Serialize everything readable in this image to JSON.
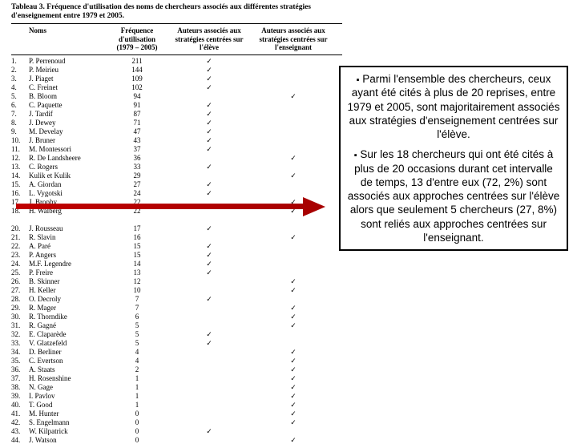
{
  "table": {
    "title": "Tableau 3. Fréquence d'utilisation des noms de chercheurs associés aux différentes stratégies d'enseignement entre 1979 et 2005.",
    "headers": {
      "noms": "Noms",
      "freq": "Fréquence d'utilisation\n(1979 – 2005)",
      "stud": "Auteurs associés aux\nstratégies centrées sur l'élève",
      "teach": "Auteurs associés aux\nstratégies centrées sur\nl'enseignant"
    },
    "rows": [
      {
        "n": "1.",
        "name": "P. Perrenoud",
        "f": "211",
        "s": "✓",
        "t": ""
      },
      {
        "n": "2.",
        "name": "P. Meirieu",
        "f": "144",
        "s": "✓",
        "t": ""
      },
      {
        "n": "3.",
        "name": "J. Piaget",
        "f": "109",
        "s": "✓",
        "t": ""
      },
      {
        "n": "4.",
        "name": "C. Freinet",
        "f": "102",
        "s": "✓",
        "t": ""
      },
      {
        "n": "5.",
        "name": "B. Bloom",
        "f": "94",
        "s": "",
        "t": "✓"
      },
      {
        "n": "6.",
        "name": "C. Paquette",
        "f": "91",
        "s": "✓",
        "t": ""
      },
      {
        "n": "7.",
        "name": "J. Tardif",
        "f": "87",
        "s": "✓",
        "t": ""
      },
      {
        "n": "8.",
        "name": "J. Dewey",
        "f": "71",
        "s": "✓",
        "t": ""
      },
      {
        "n": "9.",
        "name": "M. Develay",
        "f": "47",
        "s": "✓",
        "t": ""
      },
      {
        "n": "10.",
        "name": "J. Bruner",
        "f": "43",
        "s": "✓",
        "t": ""
      },
      {
        "n": "11.",
        "name": "M. Montessori",
        "f": "37",
        "s": "✓",
        "t": ""
      },
      {
        "n": "12.",
        "name": "R. De Landsheere",
        "f": "36",
        "s": "",
        "t": "✓"
      },
      {
        "n": "13.",
        "name": "C. Rogers",
        "f": "33",
        "s": "✓",
        "t": ""
      },
      {
        "n": "14.",
        "name": "Kulik et Kulik",
        "f": "29",
        "s": "",
        "t": "✓"
      },
      {
        "n": "15.",
        "name": "A. Giordan",
        "f": "27",
        "s": "✓",
        "t": ""
      },
      {
        "n": "16.",
        "name": "L. Vygotski",
        "f": "24",
        "s": "✓",
        "t": ""
      },
      {
        "n": "17.",
        "name": "J. Brophy",
        "f": "22",
        "s": "",
        "t": "✓"
      },
      {
        "n": "18.",
        "name": "H. Walberg",
        "f": "22",
        "s": "",
        "t": "✓"
      },
      {
        "n": "",
        "name": "",
        "f": "",
        "s": "",
        "t": ""
      },
      {
        "n": "20.",
        "name": "J. Rousseau",
        "f": "17",
        "s": "✓",
        "t": ""
      },
      {
        "n": "21.",
        "name": "R. Slavin",
        "f": "16",
        "s": "",
        "t": "✓"
      },
      {
        "n": "22.",
        "name": "A. Paré",
        "f": "15",
        "s": "✓",
        "t": ""
      },
      {
        "n": "23.",
        "name": "P. Angers",
        "f": "15",
        "s": "✓",
        "t": ""
      },
      {
        "n": "24.",
        "name": "M.F. Legendre",
        "f": "14",
        "s": "✓",
        "t": ""
      },
      {
        "n": "25.",
        "name": "P. Freire",
        "f": "13",
        "s": "✓",
        "t": ""
      },
      {
        "n": "26.",
        "name": "B. Skinner",
        "f": "12",
        "s": "",
        "t": "✓"
      },
      {
        "n": "27.",
        "name": "H. Keller",
        "f": "10",
        "s": "",
        "t": "✓"
      },
      {
        "n": "28.",
        "name": "O. Decroly",
        "f": "7",
        "s": "✓",
        "t": ""
      },
      {
        "n": "29.",
        "name": "R. Mager",
        "f": "7",
        "s": "",
        "t": "✓"
      },
      {
        "n": "30.",
        "name": "R. Thorndike",
        "f": "6",
        "s": "",
        "t": "✓"
      },
      {
        "n": "31.",
        "name": "R. Gagné",
        "f": "5",
        "s": "",
        "t": "✓"
      },
      {
        "n": "32.",
        "name": "E. Claparède",
        "f": "5",
        "s": "✓",
        "t": ""
      },
      {
        "n": "33.",
        "name": "V. Glatzefeld",
        "f": "5",
        "s": "✓",
        "t": ""
      },
      {
        "n": "34.",
        "name": "D. Berliner",
        "f": "4",
        "s": "",
        "t": "✓"
      },
      {
        "n": "35.",
        "name": "C. Evertson",
        "f": "4",
        "s": "",
        "t": "✓"
      },
      {
        "n": "36.",
        "name": "A. Staats",
        "f": "2",
        "s": "",
        "t": "✓"
      },
      {
        "n": "37.",
        "name": "H. Rosenshine",
        "f": "1",
        "s": "",
        "t": "✓"
      },
      {
        "n": "38.",
        "name": "N. Gage",
        "f": "1",
        "s": "",
        "t": "✓"
      },
      {
        "n": "39.",
        "name": "I. Pavlov",
        "f": "1",
        "s": "",
        "t": "✓"
      },
      {
        "n": "40.",
        "name": "T. Good",
        "f": "1",
        "s": "",
        "t": "✓"
      },
      {
        "n": "41.",
        "name": "M. Hunter",
        "f": "0",
        "s": "",
        "t": "✓"
      },
      {
        "n": "42.",
        "name": "S. Engelmann",
        "f": "0",
        "s": "",
        "t": "✓"
      },
      {
        "n": "43.",
        "name": "W. Kilpatrick",
        "f": "0",
        "s": "✓",
        "t": ""
      },
      {
        "n": "44.",
        "name": "J. Watson",
        "f": "0",
        "s": "",
        "t": "✓"
      }
    ]
  },
  "callout": {
    "para1": "Parmi l'ensemble des chercheurs, ceux ayant été cités à plus de 20 reprises, entre 1979 et 2005, sont majoritairement associés aux stratégies d'enseignement centrées sur l'élève.",
    "para2": "Sur les 18 chercheurs qui ont été cités à plus de 20 occasions durant cet intervalle de temps, 13 d'entre eux (72, 2%) sont associés aux approches centrées sur l'élève alors que seulement 5 chercheurs (27, 8%) sont reliés aux approches centrées sur l'enseignant."
  },
  "styling": {
    "arrow_color": "#c00000",
    "callout_border": "#000000",
    "callout_bg": "#ffffff",
    "table_border": "#000000",
    "tick_glyph": "✓"
  }
}
